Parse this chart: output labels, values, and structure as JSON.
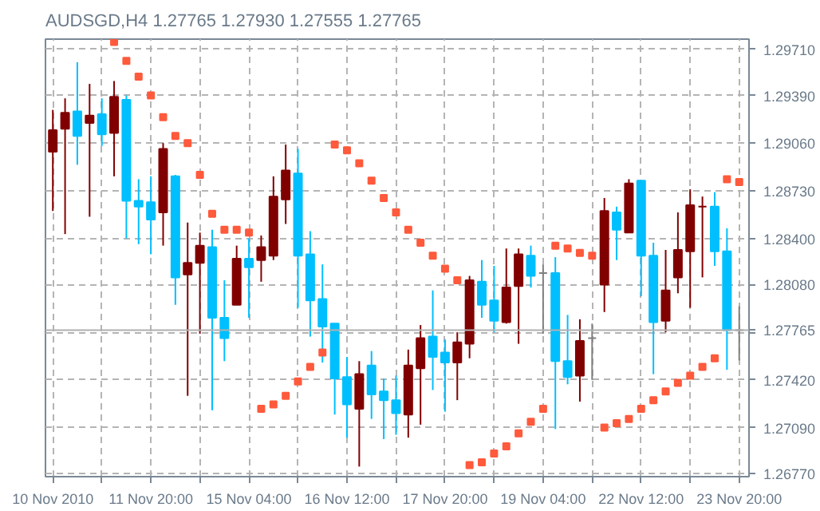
{
  "chart_data": {
    "type": "candlestick",
    "title": "AUDSGD,H4  1.27765 1.27930 1.27555 1.27765",
    "categories": [
      "10 Nov 2010",
      null,
      null,
      null,
      null,
      null,
      null,
      null,
      "11 Nov 20:00",
      null,
      null,
      null,
      null,
      null,
      null,
      null,
      "15 Nov 04:00",
      null,
      null,
      null,
      null,
      null,
      null,
      null,
      "16 Nov 12:00",
      null,
      null,
      null,
      null,
      null,
      null,
      null,
      "17 Nov 20:00",
      null,
      null,
      null,
      null,
      null,
      null,
      null,
      "19 Nov 04:00",
      null,
      null,
      null,
      null,
      null,
      null,
      null,
      "22 Nov 12:00",
      null,
      null,
      null,
      null,
      null,
      null,
      null,
      "23 Nov 20:00"
    ],
    "ohlc": [
      [
        1.29,
        1.2929,
        1.2859,
        1.2915
      ],
      [
        1.2916,
        1.2937,
        1.2843,
        1.2927
      ],
      [
        1.2928,
        1.2962,
        1.2891,
        1.2911
      ],
      [
        1.292,
        1.2947,
        1.2855,
        1.2925
      ],
      [
        1.2926,
        1.2937,
        1.2904,
        1.2912
      ],
      [
        1.2913,
        1.2949,
        1.2883,
        1.2938
      ],
      [
        1.2936,
        1.2939,
        1.284,
        1.2866
      ],
      [
        1.2866,
        1.2881,
        1.2836,
        1.2862
      ],
      [
        1.2865,
        1.2883,
        1.2829,
        1.2853
      ],
      [
        1.2858,
        1.2906,
        1.2835,
        1.2902
      ],
      [
        1.2883,
        1.2884,
        1.2794,
        1.2813
      ],
      [
        1.2815,
        1.2851,
        1.2731,
        1.2823
      ],
      [
        1.2823,
        1.2844,
        1.2774,
        1.2835
      ],
      [
        1.2834,
        1.2846,
        1.2721,
        1.2785
      ],
      [
        1.2785,
        1.2811,
        1.2755,
        1.2771
      ],
      [
        1.2794,
        1.2835,
        1.2794,
        1.2826
      ],
      [
        1.2826,
        1.284,
        1.2785,
        1.282
      ],
      [
        1.2825,
        1.2842,
        1.281,
        1.2834
      ],
      [
        1.2828,
        1.2883,
        1.2825,
        1.2869
      ],
      [
        1.2867,
        1.2905,
        1.285,
        1.2887
      ],
      [
        1.2885,
        1.2902,
        1.2792,
        1.2828
      ],
      [
        1.2829,
        1.2845,
        1.2772,
        1.2797
      ],
      [
        1.2798,
        1.2822,
        1.2754,
        1.2779
      ],
      [
        1.2781,
        1.2781,
        1.2718,
        1.2743
      ],
      [
        1.2744,
        1.2758,
        1.2702,
        1.2725
      ],
      [
        1.2722,
        1.2755,
        1.2682,
        1.2746
      ],
      [
        1.2752,
        1.2762,
        1.2715,
        1.2732
      ],
      [
        1.2734,
        1.2743,
        1.2701,
        1.2728
      ],
      [
        1.2728,
        1.2745,
        1.2704,
        1.2719
      ],
      [
        1.2718,
        1.2763,
        1.2702,
        1.2752
      ],
      [
        1.275,
        1.278,
        1.2711,
        1.2771
      ],
      [
        1.2772,
        1.2804,
        1.2735,
        1.2758
      ],
      [
        1.2761,
        1.277,
        1.272,
        1.2754
      ],
      [
        1.2754,
        1.2775,
        1.2728,
        1.2768
      ],
      [
        1.2767,
        1.2814,
        1.2757,
        1.2811
      ],
      [
        1.281,
        1.2825,
        1.2785,
        1.2794
      ],
      [
        1.2797,
        1.2821,
        1.2775,
        1.2783
      ],
      [
        1.2782,
        1.2833,
        1.2781,
        1.2806
      ],
      [
        1.2807,
        1.2833,
        1.2767,
        1.2829
      ],
      [
        1.2828,
        1.2835,
        1.2806,
        1.2814
      ],
      [
        1.2816,
        1.2822,
        1.2774,
        1.2816
      ],
      [
        1.2816,
        1.2827,
        1.2708,
        1.2755
      ],
      [
        1.2755,
        1.2787,
        1.2739,
        1.2744
      ],
      [
        1.2745,
        1.2784,
        1.2727,
        1.2769
      ],
      [
        1.2771,
        1.2781,
        1.2742,
        1.2771
      ],
      [
        1.2808,
        1.2868,
        1.2789,
        1.2859
      ],
      [
        1.2858,
        1.2862,
        1.2825,
        1.2846
      ],
      [
        1.2844,
        1.2881,
        1.2844,
        1.2878
      ],
      [
        1.288,
        1.288,
        1.28,
        1.2828
      ],
      [
        1.2828,
        1.2837,
        1.2746,
        1.2782
      ],
      [
        1.2783,
        1.2832,
        1.2775,
        1.2804
      ],
      [
        1.2813,
        1.2858,
        1.2802,
        1.2832
      ],
      [
        1.2831,
        1.2874,
        1.2792,
        1.2863
      ],
      [
        1.2862,
        1.2869,
        1.2813,
        1.2862
      ],
      [
        1.2862,
        1.2872,
        1.2821,
        1.2831
      ],
      [
        1.2831,
        1.2847,
        1.2749,
        1.27765
      ],
      [
        1.27765,
        1.2793,
        1.27555,
        1.27765
      ]
    ],
    "colors": [
      "#800000",
      "#800000",
      "#00bfff",
      "#800000",
      "#00bfff",
      "#800000",
      "#00bfff",
      "#00bfff",
      "#00bfff",
      "#800000",
      "#00bfff",
      "#800000",
      "#800000",
      "#00bfff",
      "#00bfff",
      "#800000",
      "#00bfff",
      "#800000",
      "#800000",
      "#800000",
      "#00bfff",
      "#00bfff",
      "#00bfff",
      "#00bfff",
      "#00bfff",
      "#800000",
      "#00bfff",
      "#00bfff",
      "#00bfff",
      "#800000",
      "#800000",
      "#00bfff",
      "#00bfff",
      "#800000",
      "#800000",
      "#00bfff",
      "#00bfff",
      "#800000",
      "#800000",
      "#00bfff",
      "#808080",
      "#00bfff",
      "#00bfff",
      "#800000",
      "#808080",
      "#800000",
      "#00bfff",
      "#800000",
      "#00bfff",
      "#00bfff",
      "#800000",
      "#800000",
      "#800000",
      "#800000",
      "#00bfff",
      "#00bfff",
      "#808080"
    ],
    "series": [
      {
        "type": "scatter",
        "color": "#ff5a3c",
        "marker": "square",
        "values": [
          null,
          null,
          null,
          null,
          null,
          1.2976,
          1.2963,
          1.2952,
          1.2939,
          1.2924,
          1.2911,
          1.2906,
          1.2884,
          1.2857,
          1.2846,
          1.2846,
          1.2844,
          1.2722,
          1.2725,
          1.2731,
          1.2741,
          1.2751,
          1.2761,
          1.2905,
          1.2901,
          1.2892,
          1.288,
          1.2868,
          1.2858,
          1.2846,
          1.2837,
          1.2828,
          1.2819,
          1.2811,
          1.2683,
          1.2685,
          1.2691,
          1.2696,
          1.2705,
          1.2713,
          1.2722,
          1.2835,
          1.2833,
          1.283,
          1.2828,
          1.2709,
          1.2712,
          1.2715,
          1.2722,
          1.2728,
          1.2734,
          1.274,
          1.2745,
          1.2751,
          1.2757,
          1.2881,
          1.2879
        ]
      }
    ],
    "ylim": [
      1.2675,
      1.2978
    ],
    "yticks": [
      {
        "value": 1.2677,
        "label": "1.26770"
      },
      {
        "value": 1.2709,
        "label": "1.27090"
      },
      {
        "value": 1.2742,
        "label": "1.27420"
      },
      {
        "value": 1.2775,
        "label": null
      },
      {
        "value": 1.2808,
        "label": "1.28080"
      },
      {
        "value": 1.284,
        "label": "1.28400"
      },
      {
        "value": 1.2873,
        "label": "1.28730"
      },
      {
        "value": 1.2906,
        "label": "1.29060"
      },
      {
        "value": 1.2939,
        "label": "1.29390"
      },
      {
        "value": 1.2971,
        "label": "1.29710"
      }
    ],
    "ref_lines": [
      {
        "axis": "y",
        "value": 1.27765,
        "label": "1.27765",
        "color": "#b0b0b0"
      }
    ],
    "grid": true
  }
}
